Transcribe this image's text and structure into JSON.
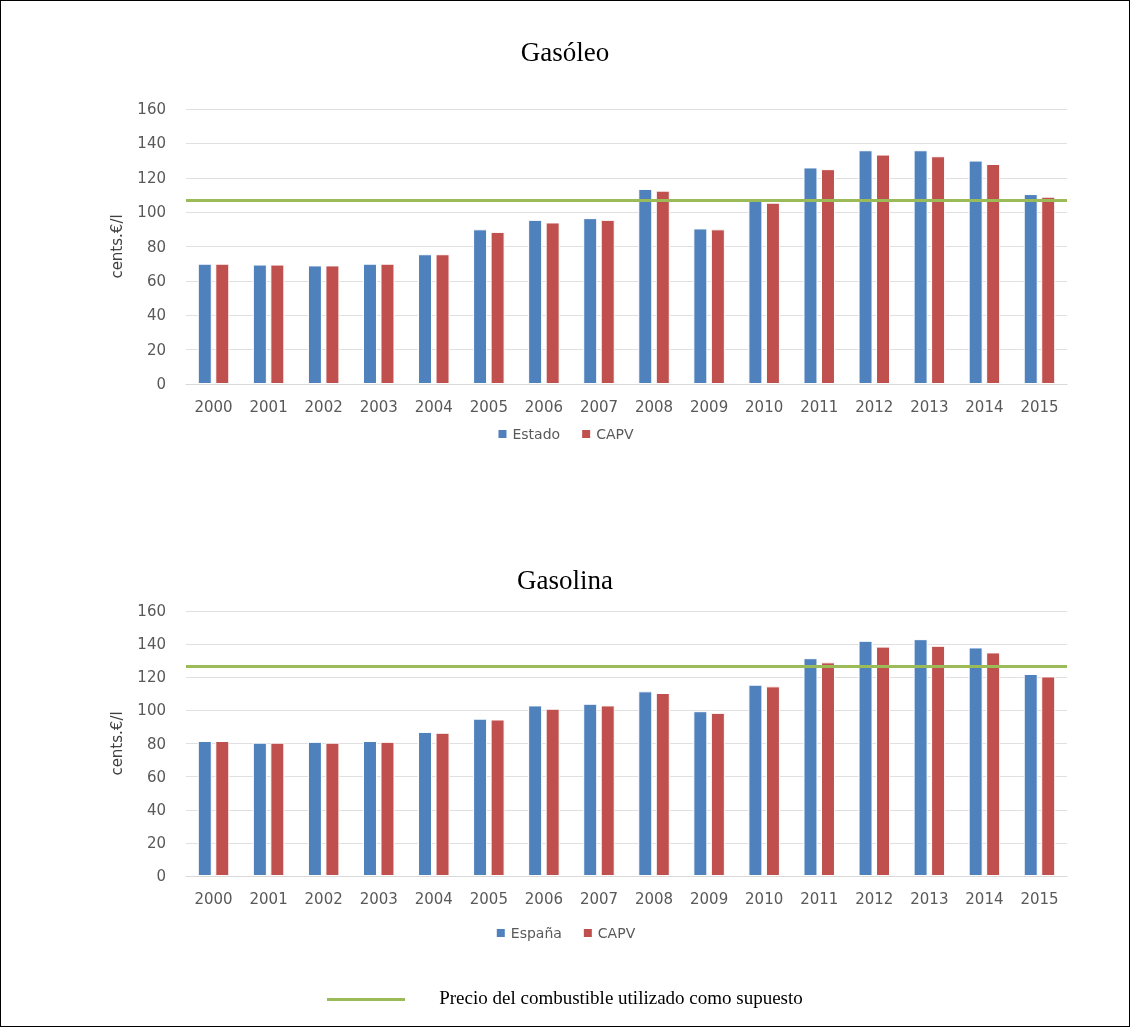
{
  "chart_data": [
    {
      "type": "bar",
      "title": "Gasóleo",
      "ylabel": "cents.€/l",
      "categories": [
        "2000",
        "2001",
        "2002",
        "2003",
        "2004",
        "2005",
        "2006",
        "2007",
        "2008",
        "2009",
        "2010",
        "2011",
        "2012",
        "2013",
        "2014",
        "2015"
      ],
      "series": [
        {
          "name": "Estado",
          "color": "#4f81bd",
          "values": [
            70,
            69.5,
            69,
            70,
            75.5,
            90,
            95.5,
            96.5,
            113.5,
            90.5,
            107,
            126,
            136,
            136,
            130,
            110.5
          ]
        },
        {
          "name": "CAPV",
          "color": "#c0504d",
          "values": [
            70,
            69.5,
            69,
            70,
            75.5,
            88.5,
            94,
            95.5,
            112.5,
            90,
            105.5,
            125,
            133.5,
            132.5,
            128,
            109
          ]
        }
      ],
      "ylim": [
        0,
        160
      ],
      "yticks": [
        0,
        20,
        40,
        60,
        80,
        100,
        120,
        140,
        160
      ],
      "grid": "y",
      "legend": "bottom",
      "ref_lines": [
        {
          "axis": "y",
          "value": 107,
          "color": "#9bbb59"
        }
      ]
    },
    {
      "type": "bar",
      "title": "Gasolina",
      "ylabel": "cents.€/l",
      "categories": [
        "2000",
        "2001",
        "2002",
        "2003",
        "2004",
        "2005",
        "2006",
        "2007",
        "2008",
        "2009",
        "2010",
        "2011",
        "2012",
        "2013",
        "2014",
        "2015"
      ],
      "series": [
        {
          "name": "España",
          "color": "#4f81bd",
          "values": [
            81.5,
            80.5,
            81,
            81.5,
            87,
            95,
            103,
            104,
            111.5,
            99.5,
            115.5,
            131.5,
            142,
            143,
            138,
            122
          ]
        },
        {
          "name": "CAPV",
          "color": "#c0504d",
          "values": [
            81.5,
            80.5,
            80.5,
            81,
            86.5,
            94.5,
            101,
            103,
            110.5,
            98.5,
            114.5,
            129,
            138.5,
            139,
            135,
            120.5
          ]
        }
      ],
      "ylim": [
        0,
        160
      ],
      "yticks": [
        0,
        20,
        40,
        60,
        80,
        100,
        120,
        140,
        160
      ],
      "grid": "y",
      "legend": "bottom",
      "ref_lines": [
        {
          "axis": "y",
          "value": 126.5,
          "color": "#9bbb59",
          "label": "Precio del combustible utilizado como supuesto"
        }
      ]
    }
  ]
}
